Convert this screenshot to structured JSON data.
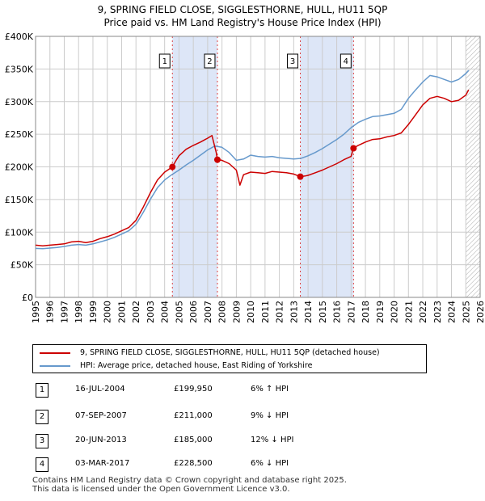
{
  "title_line1": "9, SPRING FIELD CLOSE, SIGGLESTHORNE, HULL, HU11 5QP",
  "title_line2": "Price paid vs. HM Land Registry's House Price Index (HPI)",
  "chart_data": {
    "type": "line",
    "title": "9, SPRING FIELD CLOSE, SIGGLESTHORNE, HULL, HU11 5QP — Price paid vs. HM Land Registry's House Price Index (HPI)",
    "xlabel": "",
    "ylabel": "",
    "xlim": [
      1995,
      2026
    ],
    "ylim": [
      0,
      400000
    ],
    "grid": true,
    "y_ticks": [
      0,
      50000,
      100000,
      150000,
      200000,
      250000,
      300000,
      350000,
      400000
    ],
    "y_tick_labels": [
      "£0",
      "£50K",
      "£100K",
      "£150K",
      "£200K",
      "£250K",
      "£300K",
      "£350K",
      "£400K"
    ],
    "x_tick_labels": [
      "1995",
      "1996",
      "1997",
      "1998",
      "1999",
      "2000",
      "2001",
      "2002",
      "2003",
      "2004",
      "2005",
      "2006",
      "2007",
      "2008",
      "2009",
      "2010",
      "2011",
      "2012",
      "2013",
      "2014",
      "2015",
      "2016",
      "2017",
      "2018",
      "2019",
      "2020",
      "2021",
      "2022",
      "2023",
      "2024",
      "2025",
      "2026"
    ],
    "forecast_start": 2025.0,
    "colors": {
      "property": "#cc0000",
      "hpi": "#6699cc",
      "shade": "#dde6f7",
      "marker_line": "#dd4444",
      "grid": "#cccccc",
      "hatch": "#aaaaaa"
    },
    "series": [
      {
        "name": "9, SPRING FIELD CLOSE, SIGGLESTHORNE, HULL, HU11 5QP (detached house)",
        "x": [
          1995.0,
          1995.5,
          1996.0,
          1996.5,
          1997.0,
          1997.5,
          1998.0,
          1998.5,
          1999.0,
          1999.5,
          2000.0,
          2000.5,
          2001.0,
          2001.5,
          2002.0,
          2002.5,
          2003.0,
          2003.5,
          2004.0,
          2004.54,
          2004.8,
          2005.0,
          2005.5,
          2006.0,
          2006.5,
          2007.0,
          2007.3,
          2007.6,
          2007.68,
          2008.0,
          2008.5,
          2009.0,
          2009.25,
          2009.5,
          2010.0,
          2010.5,
          2011.0,
          2011.5,
          2012.0,
          2012.5,
          2013.0,
          2013.46,
          2013.8,
          2014.0,
          2014.5,
          2015.0,
          2015.5,
          2016.0,
          2016.5,
          2017.0,
          2017.17,
          2017.5,
          2018.0,
          2018.5,
          2019.0,
          2019.5,
          2020.0,
          2020.5,
          2021.0,
          2021.5,
          2022.0,
          2022.5,
          2023.0,
          2023.5,
          2024.0,
          2024.5,
          2025.0,
          2025.2
        ],
        "values": [
          80000,
          79000,
          80000,
          81000,
          82000,
          85000,
          86000,
          84000,
          86000,
          90000,
          93000,
          97000,
          102000,
          107000,
          118000,
          138000,
          160000,
          180000,
          192000,
          199950,
          210000,
          217000,
          227000,
          233000,
          238000,
          244000,
          248000,
          222000,
          211000,
          210000,
          205000,
          195000,
          172000,
          188000,
          192000,
          191000,
          190000,
          193000,
          192000,
          191000,
          189000,
          185000,
          186000,
          187000,
          191000,
          195000,
          200000,
          205000,
          211000,
          216000,
          228500,
          233000,
          238000,
          242000,
          243000,
          246000,
          248000,
          252000,
          265000,
          280000,
          295000,
          305000,
          308000,
          305000,
          300000,
          302000,
          310000,
          318000
        ]
      },
      {
        "name": "HPI: Average price, detached house, East Riding of Yorkshire",
        "x": [
          1995.0,
          1995.5,
          1996.0,
          1996.5,
          1997.0,
          1997.5,
          1998.0,
          1998.5,
          1999.0,
          1999.5,
          2000.0,
          2000.5,
          2001.0,
          2001.5,
          2002.0,
          2002.5,
          2003.0,
          2003.5,
          2004.0,
          2004.5,
          2005.0,
          2005.5,
          2006.0,
          2006.5,
          2007.0,
          2007.5,
          2008.0,
          2008.5,
          2009.0,
          2009.5,
          2010.0,
          2010.5,
          2011.0,
          2011.5,
          2012.0,
          2012.5,
          2013.0,
          2013.5,
          2014.0,
          2014.5,
          2015.0,
          2015.5,
          2016.0,
          2016.5,
          2017.0,
          2017.5,
          2018.0,
          2018.5,
          2019.0,
          2019.5,
          2020.0,
          2020.5,
          2021.0,
          2021.5,
          2022.0,
          2022.5,
          2023.0,
          2023.5,
          2024.0,
          2024.5,
          2025.0,
          2025.2
        ],
        "values": [
          75000,
          74500,
          75500,
          76500,
          78000,
          80000,
          81000,
          80000,
          82000,
          85000,
          88000,
          92000,
          97000,
          102000,
          112000,
          130000,
          150000,
          168000,
          180000,
          188000,
          195000,
          203000,
          210000,
          218000,
          226000,
          232000,
          230000,
          222000,
          210000,
          212000,
          218000,
          216000,
          215000,
          216000,
          214000,
          213000,
          212000,
          213000,
          217000,
          222000,
          228000,
          235000,
          242000,
          250000,
          260000,
          268000,
          273000,
          277000,
          278000,
          280000,
          282000,
          288000,
          305000,
          318000,
          330000,
          340000,
          338000,
          334000,
          330000,
          334000,
          343000,
          348000
        ]
      }
    ],
    "sales": [
      {
        "label": "1",
        "date": "16-JUL-2004",
        "x": 2004.54,
        "price": 199950,
        "price_text": "£199,950",
        "hpi_text": "6% ↑ HPI"
      },
      {
        "label": "2",
        "date": "07-SEP-2007",
        "x": 2007.68,
        "price": 211000,
        "price_text": "£211,000",
        "hpi_text": "9% ↓ HPI"
      },
      {
        "label": "3",
        "date": "20-JUN-2013",
        "x": 2013.46,
        "price": 185000,
        "price_text": "£185,000",
        "hpi_text": "12% ↓ HPI"
      },
      {
        "label": "4",
        "date": "03-MAR-2017",
        "x": 2017.17,
        "price": 228500,
        "price_text": "£228,500",
        "hpi_text": "6% ↓ HPI"
      }
    ],
    "shaded_ranges": [
      [
        2004.54,
        2007.68
      ],
      [
        2013.46,
        2017.17
      ]
    ]
  },
  "legend": {
    "property_label": "9, SPRING FIELD CLOSE, SIGGLESTHORNE, HULL, HU11 5QP (detached house)",
    "hpi_label": "HPI: Average price, detached house, East Riding of Yorkshire"
  },
  "footer": {
    "line1": "Contains HM Land Registry data © Crown copyright and database right 2025.",
    "line2": "This data is licensed under the Open Government Licence v3.0."
  }
}
